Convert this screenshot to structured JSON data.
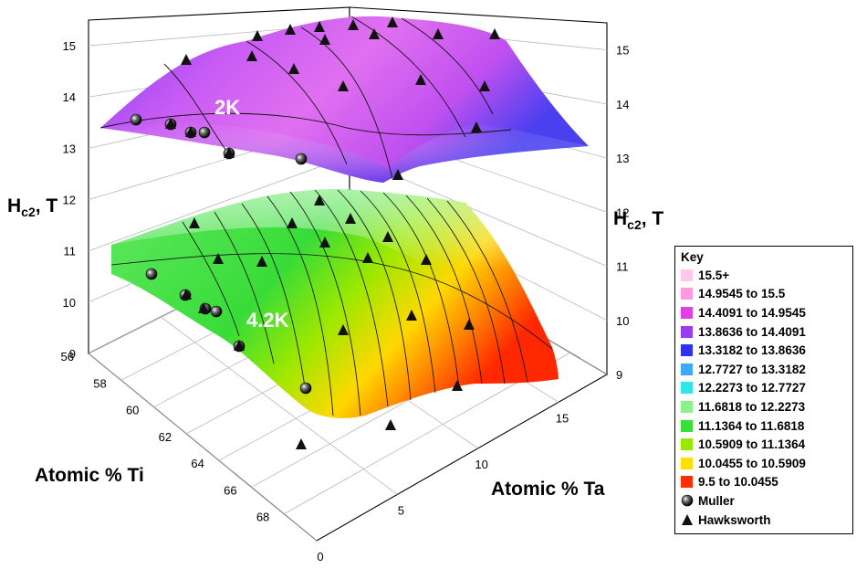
{
  "chart_data": {
    "type": "surface",
    "axes": {
      "x": {
        "label": "Atomic % Ti",
        "ticks": [
          56,
          58,
          60,
          62,
          64,
          66,
          68
        ],
        "range": [
          56,
          70
        ]
      },
      "y": {
        "label": "Atomic % Ta",
        "ticks": [
          0,
          5,
          10,
          15
        ],
        "range": [
          0,
          18
        ]
      },
      "z": {
        "label_main": "H",
        "label_sub": "c2",
        "label_tail": ", T",
        "ticks": [
          9,
          10,
          11,
          12,
          13,
          14,
          15
        ],
        "range": [
          9,
          15.5
        ]
      }
    },
    "surfaces": [
      {
        "name": "2K",
        "coloring": "contour-colored",
        "z_min": 13.3,
        "z_max": 15.4
      },
      {
        "name": "4.2K",
        "coloring": "contour-colored",
        "z_min": 9.5,
        "z_max": 12.2
      }
    ],
    "legend": {
      "title": "Key",
      "placement": "right",
      "bands": [
        {
          "label": "15.5+",
          "color": "#ffc8ec"
        },
        {
          "label": "14.9545 to 15.5",
          "color": "#ff99e0"
        },
        {
          "label": "14.4091 to 14.9545",
          "color": "#e040e6"
        },
        {
          "label": "13.8636 to 14.4091",
          "color": "#9a3cf0"
        },
        {
          "label": "13.3182 to 13.8636",
          "color": "#3030f0"
        },
        {
          "label": "12.7727 to 13.3182",
          "color": "#40a8f8"
        },
        {
          "label": "12.2273 to 12.7727",
          "color": "#30e6e6"
        },
        {
          "label": "11.6818 to 12.2273",
          "color": "#8af28a"
        },
        {
          "label": "11.1364 to 11.6818",
          "color": "#38e038"
        },
        {
          "label": "10.5909 to 11.1364",
          "color": "#98e800"
        },
        {
          "label": "10.0455 to 10.5909",
          "color": "#ffe000"
        },
        {
          "label": "9.5 to 10.0455",
          "color": "#ff3000"
        }
      ],
      "markers": [
        {
          "label": "Muller",
          "shape": "sphere"
        },
        {
          "label": "Hawksworth",
          "shape": "triangle"
        }
      ]
    }
  }
}
